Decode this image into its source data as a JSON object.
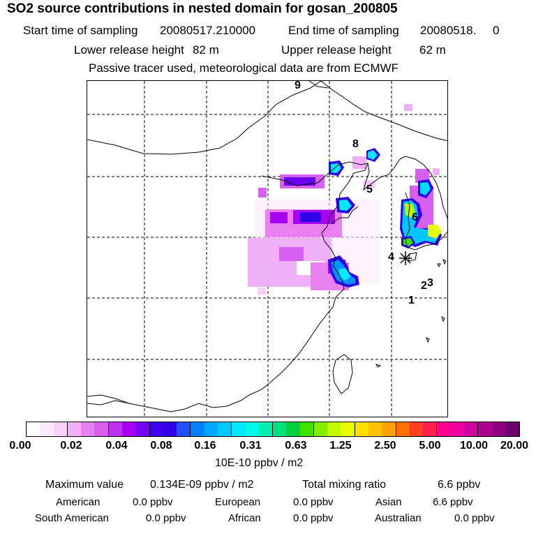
{
  "header": {
    "title": "SO2 source contributions in nested domain for gosan_200805",
    "start_label": "Start time of sampling",
    "start_value": "20080517.210000",
    "end_label": "End time of sampling",
    "end_value": "20080518.     0",
    "lower_label": "Lower release height",
    "lower_value": "82 m",
    "upper_label": "Upper release height",
    "upper_value": "62 m",
    "note": "Passive tracer used, meteorological data are from ECMWF"
  },
  "map": {
    "markers": [
      "9",
      "8",
      "5",
      "6",
      "4",
      "3",
      "2",
      "1"
    ],
    "station_symbol": "star"
  },
  "legend": {
    "ticks": [
      "0.00",
      "0.02",
      "0.04",
      "0.08",
      "0.16",
      "0.31",
      "0.63",
      "1.25",
      "2.50",
      "5.00",
      "10.00",
      "20.00"
    ],
    "unit": "10E-10 ppbv / m2",
    "colors": [
      "#ffffff",
      "#fce8fc",
      "#f8d0f8",
      "#f0b0f8",
      "#e880f0",
      "#d860f0",
      "#c030f0",
      "#a800f0",
      "#7800f0",
      "#4000f0",
      "#3000e8",
      "#2050ff",
      "#0080ff",
      "#00a8ff",
      "#00c8ff",
      "#00e8ff",
      "#00f8e8",
      "#00f0b0",
      "#00e080",
      "#00d040",
      "#40e000",
      "#80f000",
      "#c0f800",
      "#e8ff00",
      "#ffe000",
      "#ffc000",
      "#ffa000",
      "#ff7000",
      "#ff4020",
      "#ff2050",
      "#ff0090",
      "#f000a0",
      "#d000a0",
      "#b00090",
      "#900080",
      "#700070"
    ]
  },
  "summary": {
    "max_label": "Maximum value",
    "max_value": "0.134E-09 ppbv / m2",
    "total_label": "Total mixing ratio",
    "total_value": "6.6 ppbv",
    "regions": [
      {
        "name": "American",
        "value": "0.0 ppbv"
      },
      {
        "name": "European",
        "value": "0.0 ppbv"
      },
      {
        "name": "Asian",
        "value": "6.6 ppbv"
      },
      {
        "name": "South American",
        "value": "0.0 ppbv"
      },
      {
        "name": "African",
        "value": "0.0 ppbv"
      },
      {
        "name": "Australian",
        "value": "0.0 ppbv"
      }
    ]
  }
}
